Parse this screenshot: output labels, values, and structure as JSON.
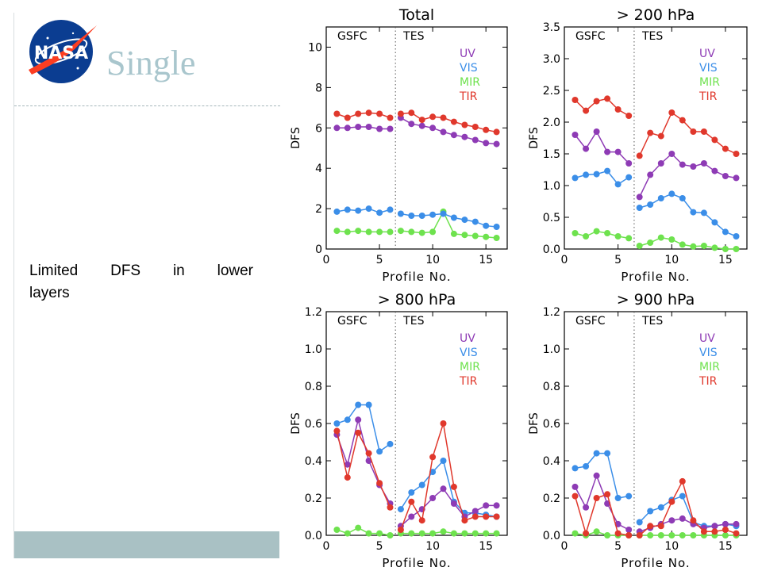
{
  "slide": {
    "title": "Single",
    "logo_text": "NASA",
    "body_line1": "Limited DFS in lower",
    "body_line2": "layers"
  },
  "colors": {
    "UV": "#8e3bb5",
    "VIS": "#3b8ee8",
    "MIR": "#6ee24e",
    "TIR": "#e0382c",
    "title": "#a9c6cd",
    "footer": "#a9c1c4"
  },
  "chart_data": [
    {
      "type": "line",
      "title": "Total",
      "xlabel": "Profile No.",
      "ylabel": "DFS",
      "xlim": [
        0,
        17
      ],
      "ylim": [
        0,
        11
      ],
      "xticks": [
        "0",
        "5",
        "10",
        "15"
      ],
      "yticks": [
        "0",
        "2",
        "4",
        "6",
        "8",
        "10"
      ],
      "region_labels": [
        "GSFC",
        "TES"
      ],
      "divider_x": 6.5,
      "legend": [
        "UV",
        "VIS",
        "MIR",
        "TIR"
      ],
      "legend_position": "top-right",
      "x": [
        1,
        2,
        3,
        4,
        5,
        6,
        7,
        8,
        9,
        10,
        11,
        12,
        13,
        14,
        15,
        16
      ],
      "series": [
        {
          "name": "UV",
          "values": [
            6.0,
            6.0,
            6.05,
            6.05,
            5.95,
            5.95,
            6.5,
            6.2,
            6.1,
            6.0,
            5.8,
            5.65,
            5.55,
            5.4,
            5.25,
            5.2
          ]
        },
        {
          "name": "VIS",
          "values": [
            1.85,
            1.95,
            1.9,
            2.0,
            1.8,
            1.95,
            1.75,
            1.65,
            1.65,
            1.7,
            1.75,
            1.55,
            1.45,
            1.35,
            1.15,
            1.1
          ]
        },
        {
          "name": "MIR",
          "values": [
            0.9,
            0.85,
            0.9,
            0.85,
            0.85,
            0.85,
            0.9,
            0.85,
            0.8,
            0.85,
            1.85,
            0.75,
            0.7,
            0.65,
            0.6,
            0.55
          ]
        },
        {
          "name": "TIR",
          "values": [
            6.7,
            6.5,
            6.7,
            6.75,
            6.7,
            6.5,
            6.7,
            6.75,
            6.4,
            6.55,
            6.5,
            6.3,
            6.15,
            6.05,
            5.9,
            5.8
          ]
        }
      ]
    },
    {
      "type": "line",
      "title": "> 200 hPa",
      "xlabel": "Profile No.",
      "ylabel": "DFS",
      "xlim": [
        0,
        17
      ],
      "ylim": [
        0,
        3.5
      ],
      "xticks": [
        "0",
        "5",
        "10",
        "15"
      ],
      "yticks": [
        "0.0",
        "0.5",
        "1.0",
        "1.5",
        "2.0",
        "2.5",
        "3.0",
        "3.5"
      ],
      "region_labels": [
        "GSFC",
        "TES"
      ],
      "divider_x": 6.5,
      "legend": [
        "UV",
        "VIS",
        "MIR",
        "TIR"
      ],
      "legend_position": "top-right",
      "x": [
        1,
        2,
        3,
        4,
        5,
        6,
        7,
        8,
        9,
        10,
        11,
        12,
        13,
        14,
        15,
        16
      ],
      "series": [
        {
          "name": "UV",
          "values": [
            1.8,
            1.58,
            1.85,
            1.53,
            1.53,
            1.35,
            0.82,
            1.17,
            1.35,
            1.5,
            1.33,
            1.3,
            1.35,
            1.23,
            1.15,
            1.12
          ]
        },
        {
          "name": "VIS",
          "values": [
            1.12,
            1.17,
            1.18,
            1.23,
            1.02,
            1.13,
            0.65,
            0.7,
            0.8,
            0.87,
            0.8,
            0.58,
            0.57,
            0.42,
            0.27,
            0.2
          ]
        },
        {
          "name": "MIR",
          "values": [
            0.25,
            0.2,
            0.28,
            0.25,
            0.2,
            0.17,
            0.05,
            0.1,
            0.18,
            0.15,
            0.07,
            0.04,
            0.05,
            0.02,
            0.0,
            0.0
          ]
        },
        {
          "name": "TIR",
          "values": [
            2.35,
            2.18,
            2.33,
            2.37,
            2.2,
            2.1,
            1.47,
            1.83,
            1.78,
            2.15,
            2.03,
            1.85,
            1.85,
            1.72,
            1.58,
            1.5
          ]
        }
      ]
    },
    {
      "type": "line",
      "title": "> 800 hPa",
      "xlabel": "Profile No.",
      "ylabel": "DFS",
      "xlim": [
        0,
        17
      ],
      "ylim": [
        0,
        1.2
      ],
      "xticks": [
        "0",
        "5",
        "10",
        "15"
      ],
      "yticks": [
        "0.0",
        "0.2",
        "0.4",
        "0.6",
        "0.8",
        "1.0",
        "1.2"
      ],
      "region_labels": [
        "GSFC",
        "TES"
      ],
      "divider_x": 6.5,
      "legend": [
        "UV",
        "VIS",
        "MIR",
        "TIR"
      ],
      "legend_position": "top-right",
      "x": [
        1,
        2,
        3,
        4,
        5,
        6,
        7,
        8,
        9,
        10,
        11,
        12,
        13,
        14,
        15,
        16
      ],
      "series": [
        {
          "name": "UV",
          "values": [
            0.54,
            0.38,
            0.62,
            0.4,
            0.27,
            0.17,
            0.05,
            0.1,
            0.14,
            0.2,
            0.25,
            0.17,
            0.1,
            0.13,
            0.16,
            0.16
          ]
        },
        {
          "name": "VIS",
          "values": [
            0.6,
            0.62,
            0.7,
            0.7,
            0.45,
            0.49,
            0.14,
            0.23,
            0.27,
            0.34,
            0.4,
            0.18,
            0.12,
            0.12,
            0.11,
            0.1
          ]
        },
        {
          "name": "MIR",
          "values": [
            0.03,
            0.01,
            0.04,
            0.01,
            0.01,
            0.0,
            0.01,
            0.01,
            0.01,
            0.01,
            0.02,
            0.01,
            0.01,
            0.01,
            0.01,
            0.01
          ]
        },
        {
          "name": "TIR",
          "values": [
            0.56,
            0.31,
            0.55,
            0.44,
            0.28,
            0.15,
            0.03,
            0.18,
            0.08,
            0.42,
            0.6,
            0.26,
            0.08,
            0.1,
            0.1,
            0.1
          ]
        }
      ]
    },
    {
      "type": "line",
      "title": "> 900 hPa",
      "xlabel": "Profile No.",
      "ylabel": "DFS",
      "xlim": [
        0,
        17
      ],
      "ylim": [
        0,
        1.2
      ],
      "xticks": [
        "0",
        "5",
        "10",
        "15"
      ],
      "yticks": [
        "0.0",
        "0.2",
        "0.4",
        "0.6",
        "0.8",
        "1.0",
        "1.2"
      ],
      "region_labels": [
        "GSFC",
        "TES"
      ],
      "divider_x": 6.5,
      "legend": [
        "UV",
        "VIS",
        "MIR",
        "TIR"
      ],
      "legend_position": "top-right",
      "x": [
        1,
        2,
        3,
        4,
        5,
        6,
        7,
        8,
        9,
        10,
        11,
        12,
        13,
        14,
        15,
        16
      ],
      "series": [
        {
          "name": "UV",
          "values": [
            0.26,
            0.15,
            0.32,
            0.17,
            0.06,
            0.03,
            0.02,
            0.04,
            0.06,
            0.08,
            0.09,
            0.06,
            0.04,
            0.05,
            0.06,
            0.06
          ]
        },
        {
          "name": "VIS",
          "values": [
            0.36,
            0.37,
            0.44,
            0.44,
            0.2,
            0.21,
            0.07,
            0.13,
            0.15,
            0.19,
            0.21,
            0.07,
            0.05,
            0.05,
            0.06,
            0.05
          ]
        },
        {
          "name": "MIR",
          "values": [
            0.01,
            0.0,
            0.02,
            0.0,
            0.0,
            0.0,
            0.0,
            0.0,
            0.0,
            0.0,
            0.0,
            0.0,
            0.0,
            0.0,
            0.0,
            0.0
          ]
        },
        {
          "name": "TIR",
          "values": [
            0.21,
            0.01,
            0.2,
            0.22,
            0.01,
            0.0,
            0.0,
            0.05,
            0.05,
            0.18,
            0.29,
            0.08,
            0.02,
            0.02,
            0.03,
            0.01
          ]
        }
      ]
    }
  ]
}
